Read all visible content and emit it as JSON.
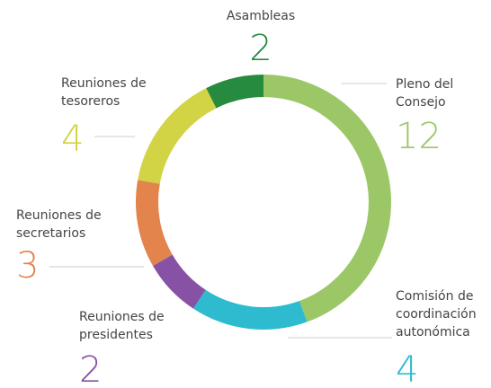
{
  "chart_data": {
    "type": "donut",
    "categories": [
      "Pleno del Consejo",
      "Comisión de coordinación autonómica",
      "Reuniones de presidentes",
      "Reuniones de secretarios",
      "Reuniones de tesoreros",
      "Asambleas"
    ],
    "values": [
      12,
      4,
      2,
      3,
      4,
      2
    ],
    "colors": [
      "#9bc766",
      "#2ebbd0",
      "#8751a6",
      "#e3844c",
      "#d3d346",
      "#268a3f"
    ]
  }
}
